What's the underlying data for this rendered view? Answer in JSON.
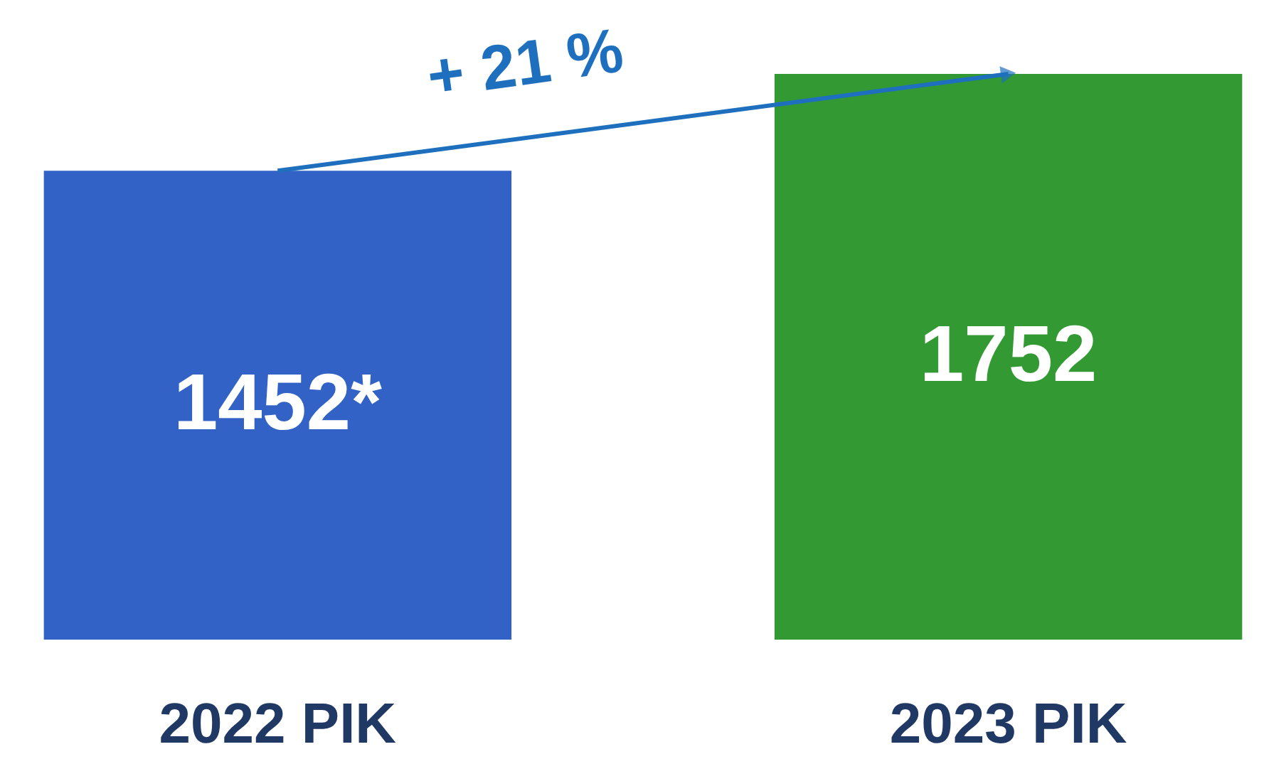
{
  "chart_data": {
    "type": "bar",
    "categories": [
      "2022 PIK",
      "2023 PIK"
    ],
    "values": [
      1452,
      1752
    ],
    "value_labels": [
      "1452*",
      "1752"
    ],
    "colors": [
      "#3362c6",
      "#339933"
    ],
    "annotations": [
      "+ 21 %"
    ]
  }
}
